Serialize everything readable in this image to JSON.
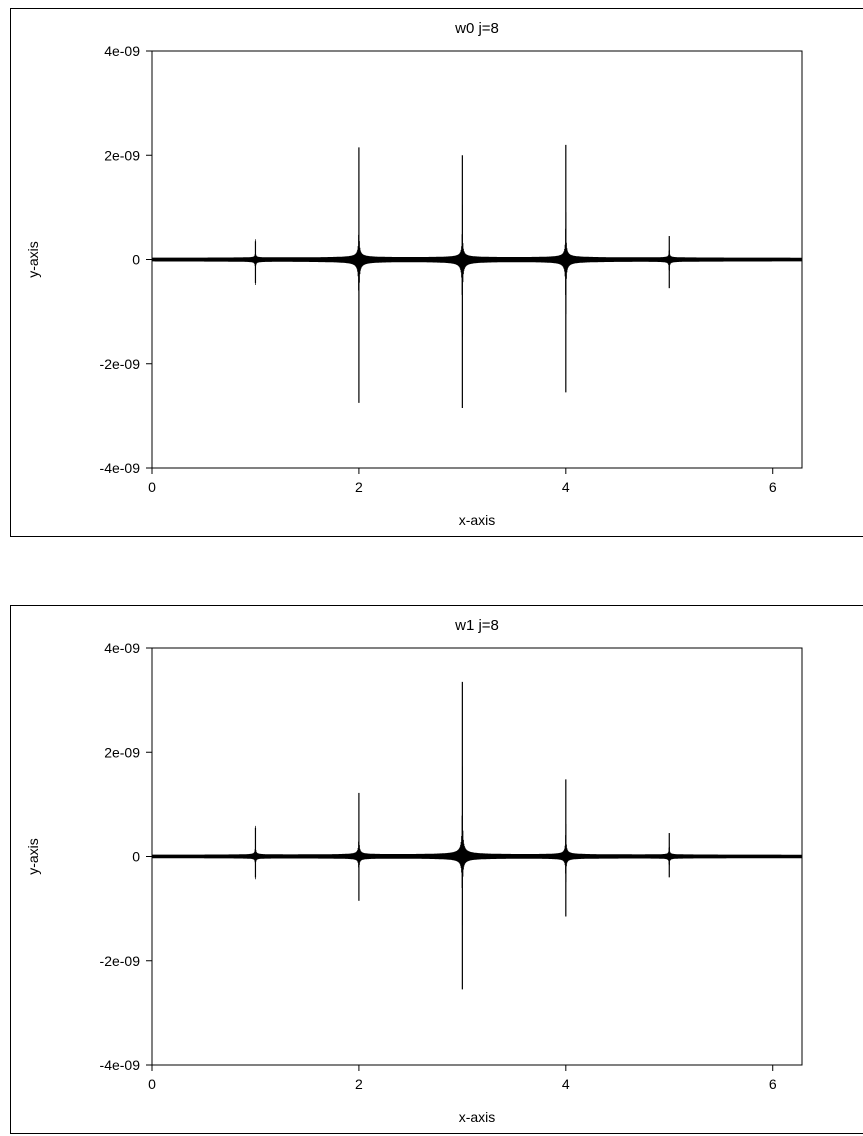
{
  "chart_data": [
    {
      "type": "line",
      "title": "w0 j=8",
      "xlabel": "x-axis",
      "ylabel": "y-axis",
      "xlim": [
        0,
        6.283
      ],
      "ylim": [
        -4e-09,
        4e-09
      ],
      "xticks": [
        0,
        2,
        4,
        6
      ],
      "xtick_labels": [
        "0",
        "2",
        "4",
        "6"
      ],
      "yticks": [
        -4e-09,
        -2e-09,
        0,
        2e-09,
        4e-09
      ],
      "ytick_labels": [
        "-4e-09",
        "-2e-09",
        "0",
        "2e-09",
        "4e-09"
      ],
      "grid": false,
      "series": [
        {
          "color": "#000000",
          "spikes": [
            {
              "x": 1.0,
              "max": 3.5e-10,
              "min": -4.5e-10
            },
            {
              "x": 2.0,
              "max": 2.15e-09,
              "min": -2.75e-09
            },
            {
              "x": 3.0,
              "max": 2e-09,
              "min": -2.85e-09
            },
            {
              "x": 4.0,
              "max": 2.2e-09,
              "min": -2.55e-09
            },
            {
              "x": 5.0,
              "max": 4.5e-10,
              "min": -5.5e-10
            }
          ]
        }
      ]
    },
    {
      "type": "line",
      "title": "w1 j=8",
      "xlabel": "x-axis",
      "ylabel": "y-axis",
      "xlim": [
        0,
        6.283
      ],
      "ylim": [
        -4e-09,
        4e-09
      ],
      "xticks": [
        0,
        2,
        4,
        6
      ],
      "xtick_labels": [
        "0",
        "2",
        "4",
        "6"
      ],
      "yticks": [
        -4e-09,
        -2e-09,
        0,
        2e-09,
        4e-09
      ],
      "ytick_labels": [
        "-4e-09",
        "-2e-09",
        "0",
        "2e-09",
        "4e-09"
      ],
      "grid": false,
      "series": [
        {
          "color": "#000000",
          "spikes": [
            {
              "x": 1.0,
              "max": 5.5e-10,
              "min": -4e-10
            },
            {
              "x": 2.0,
              "max": 1.22e-09,
              "min": -8.5e-10
            },
            {
              "x": 3.0,
              "max": 3.35e-09,
              "min": -2.55e-09
            },
            {
              "x": 4.0,
              "max": 1.48e-09,
              "min": -1.15e-09
            },
            {
              "x": 5.0,
              "max": 4.5e-10,
              "min": -4e-10
            }
          ]
        }
      ]
    }
  ]
}
